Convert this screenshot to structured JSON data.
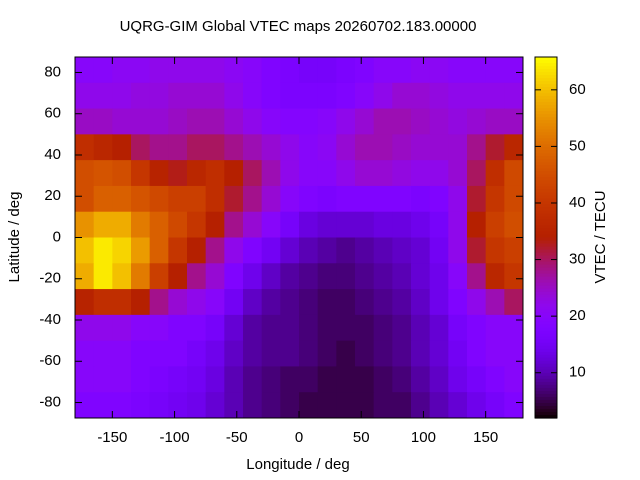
{
  "chart_data": {
    "type": "heatmap",
    "title": "UQRG-GIM Global VTEC maps 20260702.183.00000",
    "x_label": "Longitude / deg",
    "y_label": "Latitude / deg",
    "colorbar_label": "VTEC / TECU",
    "colormap": "gnuplot",
    "xlim": [
      -180,
      180
    ],
    "ylim": [
      -87.5,
      87.5
    ],
    "xticks": [
      -150,
      -100,
      -50,
      0,
      50,
      100,
      150
    ],
    "yticks": [
      -80,
      -60,
      -40,
      -20,
      0,
      20,
      40,
      60,
      80
    ],
    "clim": [
      2,
      65.8
    ],
    "cticks": [
      10,
      20,
      30,
      40,
      50,
      60
    ],
    "x": [
      -172.5,
      -157.5,
      -142.5,
      -127.5,
      -112.5,
      -97.5,
      -82.5,
      -67.5,
      -52.5,
      -37.5,
      -22.5,
      -7.5,
      7.5,
      22.5,
      37.5,
      52.5,
      67.5,
      82.5,
      97.5,
      112.5,
      127.5,
      142.5,
      157.5,
      172.5
    ],
    "y": [
      81.25,
      68.75,
      56.25,
      43.75,
      31.25,
      18.75,
      6.25,
      -6.25,
      -18.75,
      -31.25,
      -43.75,
      -56.25,
      -68.75,
      -81.25
    ],
    "values": [
      [
        20,
        20,
        21,
        21,
        22,
        22,
        22,
        22,
        21,
        20,
        18,
        17,
        16,
        16,
        17,
        18,
        20,
        20,
        21,
        21,
        20,
        20,
        20,
        20
      ],
      [
        22,
        22,
        22,
        23,
        23,
        24,
        24,
        24,
        22,
        20,
        18,
        17,
        17,
        17,
        18,
        20,
        22,
        24,
        24,
        23,
        22,
        22,
        22,
        22
      ],
      [
        25,
        25,
        24,
        24,
        24,
        25,
        26,
        26,
        24,
        22,
        20,
        19,
        19,
        20,
        22,
        24,
        26,
        26,
        25,
        24,
        23,
        24,
        25,
        25
      ],
      [
        38,
        36,
        34,
        30,
        28,
        28,
        30,
        30,
        28,
        26,
        24,
        22,
        20,
        21,
        24,
        26,
        26,
        25,
        24,
        24,
        24,
        28,
        32,
        36
      ],
      [
        45,
        46,
        45,
        40,
        35,
        33,
        36,
        38,
        34,
        30,
        26,
        22,
        20,
        20,
        22,
        24,
        24,
        23,
        22,
        22,
        24,
        30,
        38,
        44
      ],
      [
        45,
        48,
        48,
        46,
        44,
        42,
        42,
        38,
        32,
        28,
        24,
        20,
        18,
        17,
        18,
        18,
        18,
        18,
        17,
        18,
        22,
        32,
        40,
        44
      ],
      [
        55,
        58,
        58,
        52,
        48,
        44,
        40,
        34,
        28,
        24,
        20,
        16,
        13,
        12,
        12,
        12,
        13,
        13,
        14,
        16,
        22,
        34,
        42,
        45
      ],
      [
        60,
        64,
        62,
        56,
        48,
        40,
        34,
        28,
        22,
        18,
        15,
        12,
        10,
        9,
        8,
        9,
        10,
        11,
        12,
        15,
        22,
        32,
        40,
        42
      ],
      [
        58,
        64,
        60,
        52,
        42,
        34,
        28,
        24,
        18,
        14,
        11,
        9,
        8,
        7,
        7,
        8,
        9,
        10,
        12,
        14,
        20,
        28,
        36,
        40
      ],
      [
        35,
        38,
        38,
        34,
        28,
        24,
        22,
        20,
        15,
        11,
        9,
        8,
        7,
        6,
        6,
        7,
        8,
        9,
        11,
        14,
        18,
        22,
        26,
        30
      ],
      [
        22,
        22,
        22,
        20,
        20,
        18,
        18,
        16,
        12,
        9,
        8,
        8,
        7,
        6,
        6,
        6,
        7,
        8,
        10,
        12,
        16,
        18,
        20,
        20
      ],
      [
        20,
        20,
        20,
        18,
        18,
        18,
        16,
        14,
        11,
        9,
        8,
        8,
        7,
        6,
        5,
        6,
        7,
        8,
        10,
        12,
        15,
        18,
        20,
        20
      ],
      [
        20,
        20,
        20,
        18,
        17,
        16,
        15,
        13,
        10,
        8,
        7,
        6,
        6,
        5,
        5,
        5,
        6,
        7,
        9,
        11,
        14,
        16,
        18,
        20
      ],
      [
        18,
        18,
        18,
        17,
        16,
        15,
        14,
        12,
        10,
        8,
        7,
        6,
        5,
        5,
        5,
        5,
        6,
        6,
        8,
        10,
        12,
        14,
        16,
        18
      ]
    ]
  }
}
